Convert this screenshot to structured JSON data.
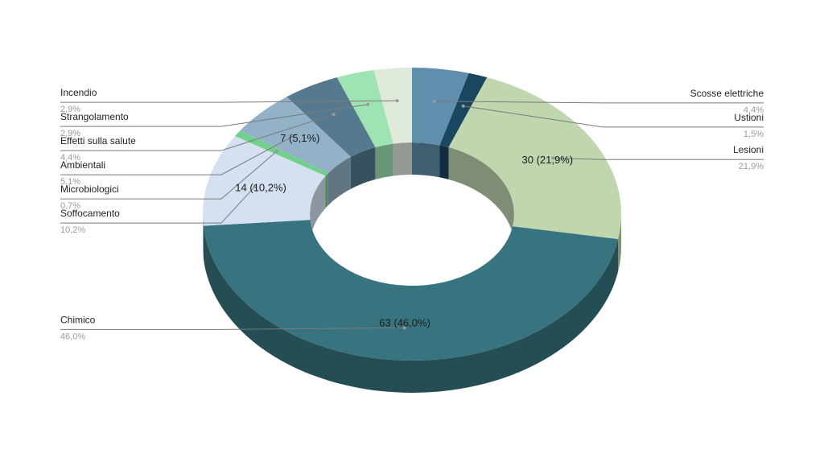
{
  "chart_data": {
    "type": "pie",
    "style": "3d-donut",
    "title": "",
    "slices": [
      {
        "name": "Scosse elettriche",
        "value": 6,
        "percent": "4,4%",
        "color": "#5f8fad",
        "side": "right",
        "inner_label": ""
      },
      {
        "name": "Ustioni",
        "value": 2,
        "percent": "1,5%",
        "color": "#1a4660",
        "side": "right",
        "inner_label": ""
      },
      {
        "name": "Lesioni",
        "value": 30,
        "percent": "21,9%",
        "color": "#bfd6ae",
        "side": "right",
        "inner_label": "30 (21,9%)"
      },
      {
        "name": "Chimico",
        "value": 63,
        "percent": "46,0%",
        "color": "#387480",
        "side": "left",
        "inner_label": "63 (46,0%)"
      },
      {
        "name": "Soffocamento",
        "value": 14,
        "percent": "10,2%",
        "color": "#d5e1f1",
        "side": "left",
        "inner_label": "14 (10,2%)"
      },
      {
        "name": "Microbiologici",
        "value": 1,
        "percent": "0,7%",
        "color": "#6fd18c",
        "side": "left",
        "inner_label": ""
      },
      {
        "name": "Ambientali",
        "value": 7,
        "percent": "5,1%",
        "color": "#93b1c7",
        "side": "left",
        "inner_label": "7 (5,1%)"
      },
      {
        "name": "Effetti sulla salute",
        "value": 6,
        "percent": "4,4%",
        "color": "#557a8f",
        "side": "left",
        "inner_label": ""
      },
      {
        "name": "Strangolamento",
        "value": 4,
        "percent": "2,9%",
        "color": "#9fe3b2",
        "side": "left",
        "inner_label": ""
      },
      {
        "name": "Incendio",
        "value": 4,
        "percent": "2,9%",
        "color": "#dfeadb",
        "side": "left",
        "inner_label": ""
      }
    ]
  }
}
